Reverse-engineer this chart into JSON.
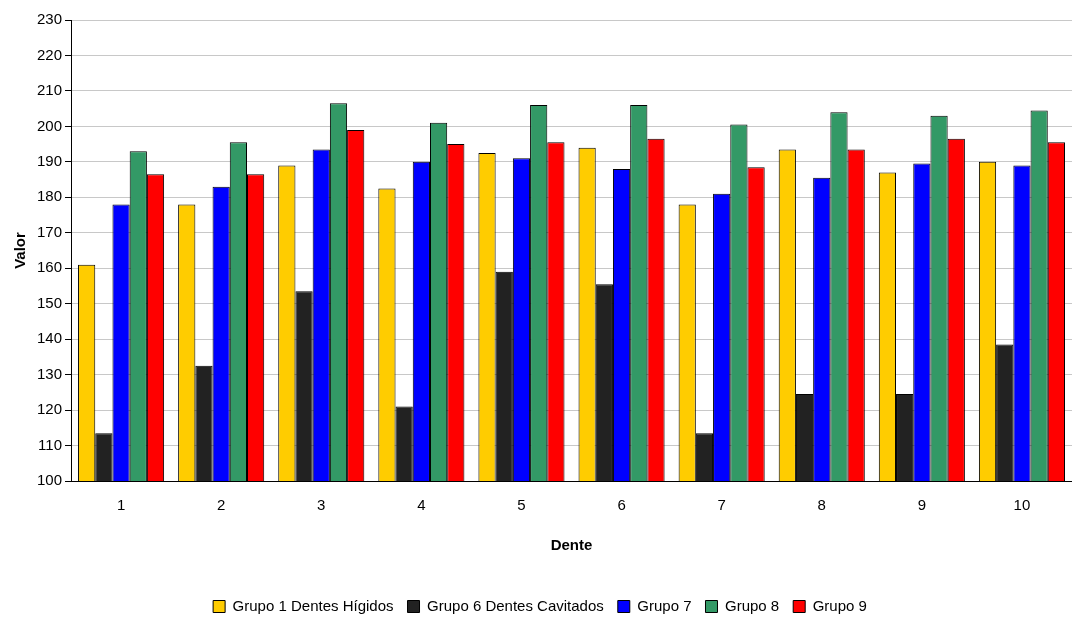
{
  "chart_data": {
    "type": "bar",
    "xlabel": "Dente",
    "ylabel": "Valor",
    "categories": [
      "1",
      "2",
      "3",
      "4",
      "5",
      "6",
      "7",
      "8",
      "9",
      "10"
    ],
    "series": [
      {
        "name": "Grupo 1 Dentes Hígidos",
        "color": "#ffcc00",
        "values": [
          161,
          178,
          189,
          182.5,
          192.5,
          194,
          178,
          193.5,
          187,
          190
        ]
      },
      {
        "name": "Grupo 6 Dentes Cavitados",
        "color": "#222222",
        "values": [
          113.5,
          132.5,
          153.5,
          121,
          159,
          155.5,
          113.5,
          124.5,
          124.5,
          138.5
        ]
      },
      {
        "name": "Grupo 7",
        "color": "#0000ff",
        "values": [
          178,
          183,
          193.5,
          190,
          191,
          188,
          181,
          185.5,
          189.5,
          189
        ]
      },
      {
        "name": "Grupo 8",
        "color": "#339966",
        "values": [
          193,
          195.5,
          206.5,
          201,
          206,
          206,
          200.5,
          204,
          203,
          204.5
        ]
      },
      {
        "name": "Grupo 9",
        "color": "#ff0000",
        "values": [
          186.5,
          186.5,
          199,
          195,
          195.5,
          196.5,
          188.5,
          193.5,
          196.5,
          195.5
        ]
      }
    ],
    "ylim": [
      100,
      230
    ],
    "yticks": [
      100,
      110,
      120,
      130,
      140,
      150,
      160,
      170,
      180,
      190,
      200,
      210,
      220,
      230
    ],
    "grid": "y",
    "legend": "bottom"
  }
}
